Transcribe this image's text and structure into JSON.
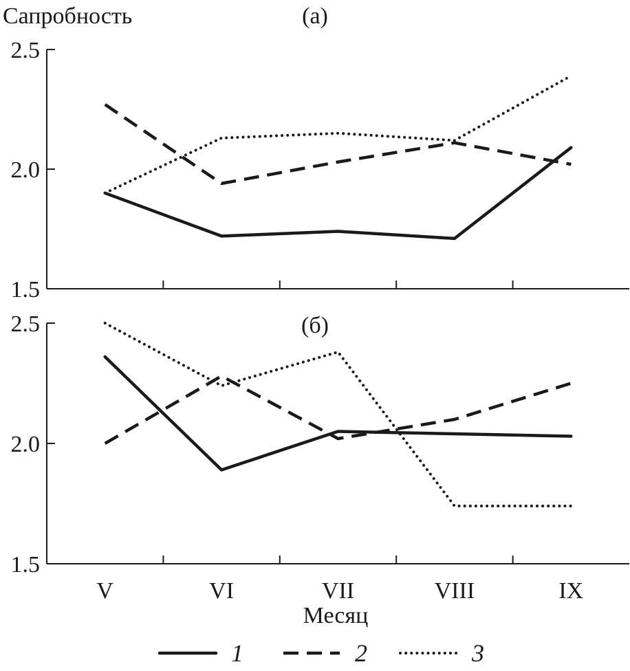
{
  "chart_data": {
    "type": "line",
    "ylabel": "Сапробность",
    "xlabel": "Месяц",
    "categories": [
      "V",
      "VI",
      "VII",
      "VIII",
      "IX"
    ],
    "yticks": [
      "2.5",
      "2.0",
      "1.5"
    ],
    "ytick_values": [
      2.5,
      2.0,
      1.5
    ],
    "ylim": [
      1.5,
      2.5
    ],
    "legend": [
      {
        "key": "1",
        "style": "solid"
      },
      {
        "key": "2",
        "style": "dashed"
      },
      {
        "key": "3",
        "style": "dotted"
      }
    ],
    "panels": [
      {
        "label": "(а)",
        "series": [
          {
            "name": "1",
            "values": [
              1.9,
              1.72,
              1.74,
              1.71,
              2.09
            ]
          },
          {
            "name": "2",
            "values": [
              2.27,
              1.94,
              2.03,
              2.11,
              2.02
            ]
          },
          {
            "name": "3",
            "values": [
              1.9,
              2.13,
              2.15,
              2.12,
              2.39
            ]
          }
        ]
      },
      {
        "label": "(б)",
        "series": [
          {
            "name": "1",
            "values": [
              2.36,
              1.89,
              2.05,
              2.04,
              2.03
            ]
          },
          {
            "name": "2",
            "values": [
              2.0,
              2.28,
              2.02,
              2.1,
              2.25
            ]
          },
          {
            "name": "3",
            "values": [
              2.5,
              2.24,
              2.38,
              1.74,
              1.74
            ]
          }
        ]
      }
    ]
  }
}
